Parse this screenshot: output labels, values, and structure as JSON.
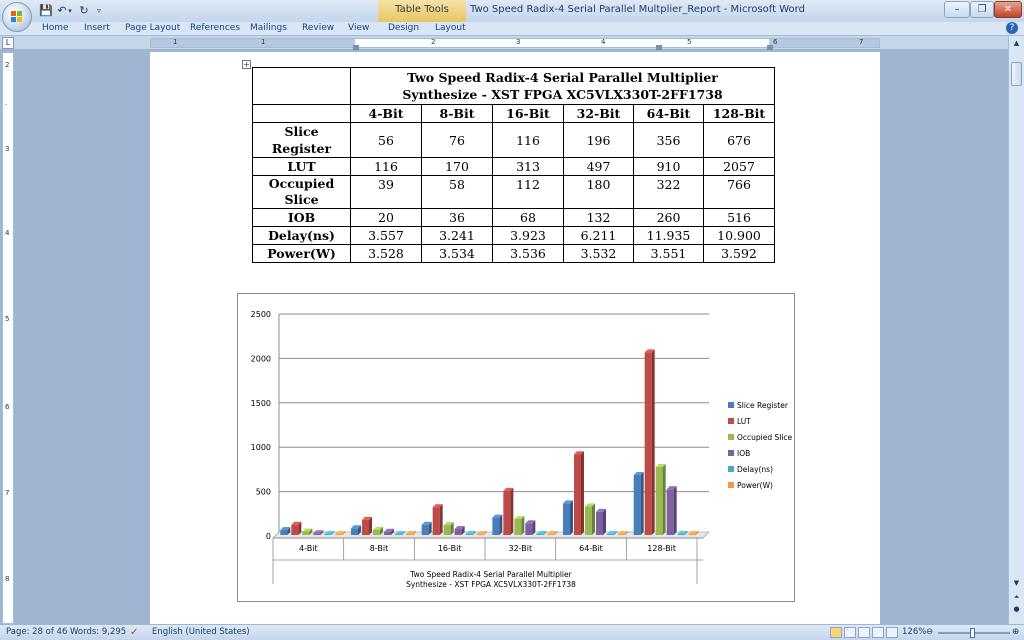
{
  "titlebar": {
    "window_title": "Two Speed Radix-4 Serial Parallel Multplier_Report - Microsoft Word",
    "context_tab": "Table Tools",
    "minimize": "–",
    "restore": "❐",
    "close": "✕"
  },
  "ribbon": {
    "tabs": [
      "Home",
      "Insert",
      "Page Layout",
      "References",
      "Mailings",
      "Review",
      "View",
      "Design",
      "Layout"
    ]
  },
  "ruler": {
    "numbers": [
      "1",
      "1",
      "2",
      "3",
      "4",
      "5",
      "6",
      "7"
    ]
  },
  "table": {
    "title_line1": "Two Speed Radix-4 Serial Parallel Multiplier",
    "title_line2": "Synthesize - XST FPGA XC5VLX330T-2FF1738",
    "columns": [
      "4-Bit",
      "8-Bit",
      "16-Bit",
      "32-Bit",
      "64-Bit",
      "128-Bit"
    ],
    "rows": [
      {
        "label": "Slice Register",
        "values": [
          "56",
          "76",
          "116",
          "196",
          "356",
          "676"
        ]
      },
      {
        "label": "LUT",
        "values": [
          "116",
          "170",
          "313",
          "497",
          "910",
          "2057"
        ]
      },
      {
        "label": "Occupied Slice",
        "values": [
          "39",
          "58",
          "112",
          "180",
          "322",
          "766"
        ]
      },
      {
        "label": "IOB",
        "values": [
          "20",
          "36",
          "68",
          "132",
          "260",
          "516"
        ]
      },
      {
        "label": "Delay(ns)",
        "values": [
          "3.557",
          "3.241",
          "3.923",
          "6.211",
          "11.935",
          "10.900"
        ]
      },
      {
        "label": "Power(W)",
        "values": [
          "3.528",
          "3.534",
          "3.536",
          "3.532",
          "3.551",
          "3.592"
        ]
      }
    ]
  },
  "chart_data": {
    "type": "bar",
    "categories": [
      "4-Bit",
      "8-Bit",
      "16-Bit",
      "32-Bit",
      "64-Bit",
      "128-Bit"
    ],
    "series": [
      {
        "name": "Slice Register",
        "color": "#4a7ebb",
        "values": [
          56,
          76,
          116,
          196,
          356,
          676
        ]
      },
      {
        "name": "LUT",
        "color": "#be4b48",
        "values": [
          116,
          170,
          313,
          497,
          910,
          2057
        ]
      },
      {
        "name": "Occupied Slice",
        "color": "#98b954",
        "values": [
          39,
          58,
          112,
          180,
          322,
          766
        ]
      },
      {
        "name": "IOB",
        "color": "#7d60a0",
        "values": [
          20,
          36,
          68,
          132,
          260,
          516
        ]
      },
      {
        "name": "Delay(ns)",
        "color": "#46aac5",
        "values": [
          3.557,
          3.241,
          3.923,
          6.211,
          11.935,
          10.9
        ]
      },
      {
        "name": "Power(W)",
        "color": "#f79646",
        "values": [
          3.528,
          3.534,
          3.536,
          3.532,
          3.551,
          3.592
        ]
      }
    ],
    "yticks": [
      "0",
      "500",
      "1000",
      "1500",
      "2000",
      "2500"
    ],
    "ylim": [
      0,
      2500
    ],
    "title_line1": "Two Speed Radix-4 Serial Parallel Multiplier",
    "title_line2": "Synthesize - XST FPGA XC5VLX330T-2FF1738",
    "grid": true,
    "legend": "right"
  },
  "statusbar": {
    "page": "Page: 28 of 46",
    "words": "Words: 9,295",
    "language": "English (United States)",
    "zoom": "126%"
  }
}
